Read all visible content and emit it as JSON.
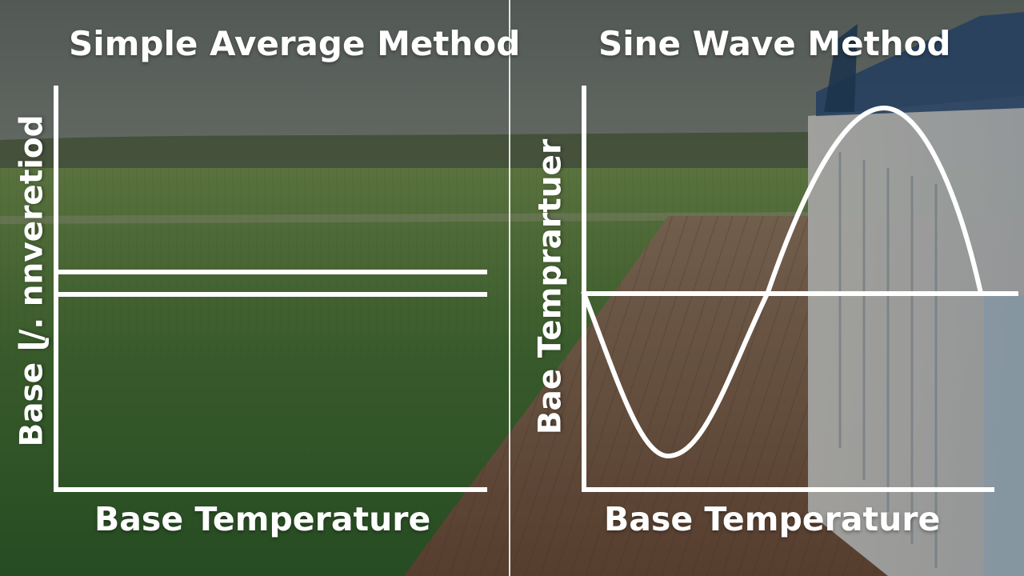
{
  "panels": {
    "left": {
      "title": "Simple Average Method",
      "xlabel": "Base Temperature",
      "ylabel": "Base ɭ/. nnveretiod"
    },
    "right": {
      "title": "Sine Wave Method",
      "xlabel": "Base Temperature",
      "ylabel": "Bae Temprartuer"
    }
  },
  "colors": {
    "line": "#ffffff",
    "field_green": "#3f7a34",
    "soil_brown": "#7b5a45",
    "sky": "#8b9590"
  }
}
